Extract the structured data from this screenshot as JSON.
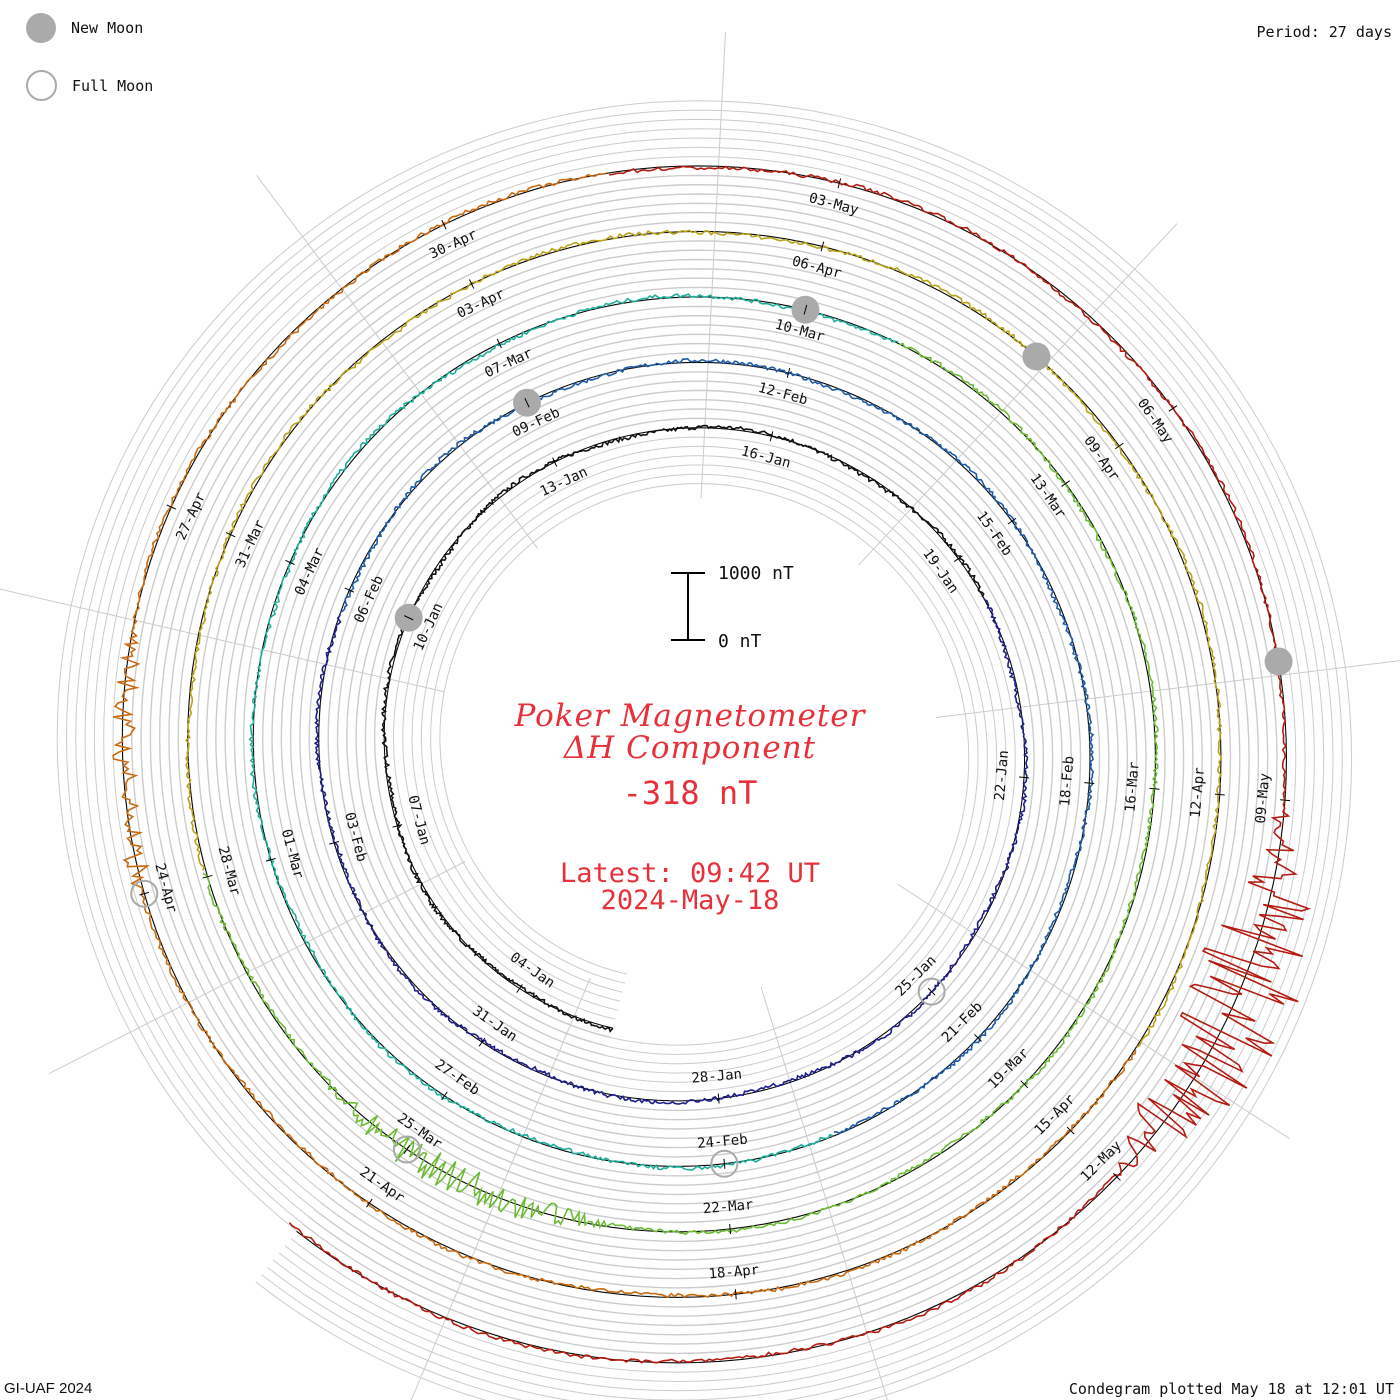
{
  "legend": {
    "new_moon": "New Moon",
    "full_moon": "Full Moon"
  },
  "header": {
    "period": "Period: 27 days"
  },
  "footer": {
    "credit": "GI-UAF 2024",
    "plotted": "Condegram plotted May 18 at 12:01 UT"
  },
  "title": {
    "line1": "Poker Magnetometer",
    "line2": "ΔH Component",
    "value": "-318 nT",
    "latest_time": "Latest: 09:42 UT",
    "latest_date": "2024-May-18"
  },
  "scale": {
    "top_label": "1000 nT",
    "bottom_label": "0 nT"
  },
  "colors": {
    "title": "#e8303a",
    "grid": "#cccccc",
    "moon": "#aaaaaa",
    "rotations": [
      "#111111",
      "#1e1e8c",
      "#1f5ba8",
      "#1fae9c",
      "#6dbb35",
      "#b8a21a",
      "#c96a12",
      "#b41c12"
    ]
  },
  "chart_data": {
    "type": "spiral",
    "period_days": 27,
    "units": "nT",
    "rotations": [
      {
        "labels": [
          "04-Jan",
          "07-Jan",
          "10-Jan",
          "13-Jan",
          "16-Jan",
          "19-Jan",
          "22-Jan",
          "25-Jan",
          "28-Jan",
          "31-Jan"
        ]
      },
      {
        "labels": [
          "03-Feb",
          "06-Feb",
          "09-Feb",
          "12-Feb",
          "15-Feb",
          "18-Feb",
          "21-Feb",
          "24-Feb",
          "27-Feb"
        ]
      },
      {
        "labels": [
          "01-Mar",
          "04-Mar",
          "07-Mar",
          "10-Mar",
          "13-Mar",
          "16-Mar",
          "19-Mar",
          "22-Mar",
          "25-Mar",
          "28-Mar",
          "31-Mar"
        ]
      },
      {
        "labels": [
          "03-Apr",
          "06-Apr",
          "09-Apr",
          "12-Apr",
          "15-Apr",
          "18-Apr",
          "21-Apr",
          "24-Apr",
          "27-Apr",
          "30-Apr"
        ]
      },
      {
        "labels": [
          "03-May",
          "06-May",
          "09-May",
          "12-May"
        ]
      }
    ],
    "new_moons": [
      "10-Jan",
      "09-Feb",
      "10-Mar",
      "08-Apr",
      "08-May"
    ],
    "full_moons": [
      "25-Jan",
      "24-Feb",
      "25-Mar",
      "24-Apr"
    ],
    "latest_value": -318
  }
}
